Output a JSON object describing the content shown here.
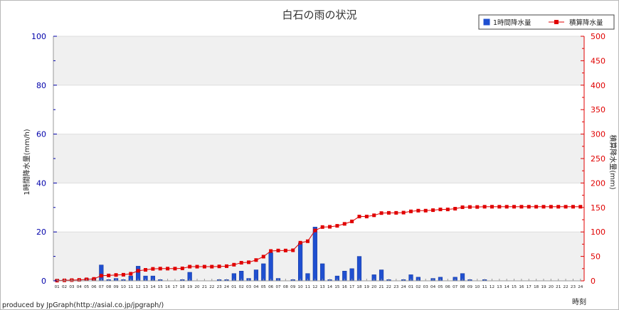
{
  "chart_data": {
    "type": "bar+line",
    "title": "白石の雨の状況",
    "ylabel_left": "1時間降水量(mm/h)",
    "ylabel_right": "積算降水量(mm)",
    "xlabel": "時刻",
    "credit": "produced by JpGraph(http://asial.co.jp/jpgraph/)",
    "ylim_left": [
      0,
      100
    ],
    "ylim_right": [
      0,
      500
    ],
    "yticks_left": [
      "0",
      "20",
      "40",
      "60",
      "80",
      "100"
    ],
    "yticks_right": [
      "0",
      "50",
      "100",
      "150",
      "200",
      "250",
      "300",
      "350",
      "400",
      "450",
      "500"
    ],
    "grid": true,
    "legend_position": "top-right",
    "colors": {
      "bar": "#1f4fd0",
      "line": "#e00000",
      "left_axis": "#0000aa",
      "right_axis": "#e00000"
    },
    "categories": [
      "01",
      "02",
      "03",
      "04",
      "05",
      "06",
      "07",
      "08",
      "09",
      "10",
      "11",
      "12",
      "13",
      "14",
      "15",
      "16",
      "17",
      "18",
      "19",
      "20",
      "21",
      "22",
      "23",
      "24",
      "01",
      "02",
      "03",
      "04",
      "05",
      "06",
      "07",
      "08",
      "09",
      "10",
      "11",
      "12",
      "13",
      "14",
      "15",
      "16",
      "17",
      "18",
      "19",
      "20",
      "21",
      "22",
      "23",
      "24",
      "01",
      "02",
      "03",
      "04",
      "05",
      "06",
      "07",
      "08",
      "09",
      "10",
      "11",
      "12",
      "13",
      "14",
      "15",
      "16",
      "17",
      "18",
      "19",
      "20",
      "21",
      "22",
      "23",
      "24"
    ],
    "series": [
      {
        "name": "1時間降水量",
        "type": "bar",
        "axis": "left",
        "values": [
          0.5,
          0.5,
          0.5,
          0.5,
          1,
          1,
          6.5,
          0.5,
          1,
          0.5,
          2,
          6,
          2,
          2,
          0.5,
          0,
          0,
          0.5,
          3.5,
          0,
          0,
          0,
          0.5,
          0.5,
          3,
          4,
          1,
          4.5,
          7,
          11.5,
          1,
          0,
          0.5,
          15.5,
          3,
          22,
          7,
          0.5,
          2,
          4,
          5,
          10,
          0,
          2.5,
          4.5,
          0.5,
          0,
          0.5,
          2.5,
          1.5,
          0,
          1,
          1.5,
          0,
          1.5,
          3,
          0.5,
          0,
          0.5,
          0,
          0,
          0,
          0,
          0,
          0,
          0,
          0,
          0,
          0,
          0,
          0,
          0
        ]
      },
      {
        "name": "積算降水量",
        "type": "line",
        "axis": "right",
        "values": [
          0.5,
          1,
          1.5,
          2,
          3,
          4,
          10.5,
          11,
          12,
          12.5,
          14.5,
          20.5,
          22.5,
          24.5,
          25,
          25,
          25,
          25.5,
          29,
          29,
          29,
          29,
          29.5,
          30,
          33,
          37,
          38,
          42.5,
          49.5,
          61,
          62,
          62,
          62.5,
          78,
          81,
          103,
          110,
          110.5,
          112.5,
          116.5,
          121.5,
          131.5,
          131.5,
          134,
          138.5,
          139,
          139,
          139.5,
          142,
          143.5,
          143.5,
          144.5,
          146,
          146,
          147.5,
          150.5,
          151,
          151,
          151.5,
          151.5,
          151.5,
          151.5,
          151.5,
          151.5,
          151.5,
          151.5,
          151.5,
          151.5,
          151.5,
          151.5,
          151.5,
          151.5
        ]
      }
    ]
  }
}
